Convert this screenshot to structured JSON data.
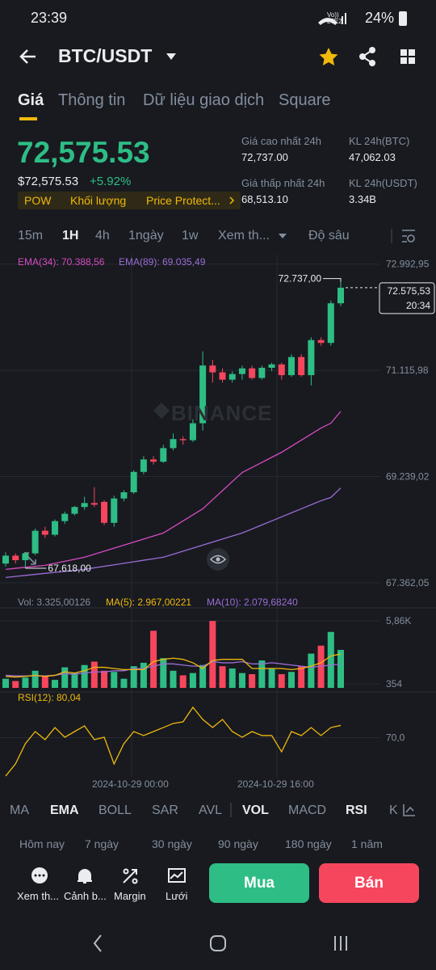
{
  "status_bar": {
    "time": "23:39",
    "network": "Vo)) LTE2",
    "battery": "24%"
  },
  "header": {
    "pair": "BTC/USDT"
  },
  "tabs": [
    "Giá",
    "Thông tin",
    "Dữ liệu giao dịch",
    "Square"
  ],
  "price": {
    "last": "72,575.53",
    "usd": "$72,575.53",
    "change": "+5.92%",
    "tags": [
      "POW",
      "Khối lượng",
      "Price Protect..."
    ]
  },
  "stats": [
    {
      "label": "Giá cao nhất 24h",
      "value": "72,737.00"
    },
    {
      "label": "KL 24h(BTC)",
      "value": "47,062.03"
    },
    {
      "label": "Giá thấp nhất 24h",
      "value": "68,513.10"
    },
    {
      "label": "KL 24h(USDT)",
      "value": "3.34B"
    }
  ],
  "intervals": [
    "15m",
    "1H",
    "4h",
    "1ngày",
    "1w",
    "Xem th...",
    "Độ sâu"
  ],
  "chart": {
    "type": "candlestick",
    "ema_legend": [
      "EMA(34): 70.388,56",
      "EMA(89): 69.035,49"
    ],
    "ylim": [
      67160,
      73160
    ],
    "yticks": [
      {
        "value": 72992.95,
        "label": "72.992,95"
      },
      {
        "value": 71115.98,
        "label": "71.115,98"
      },
      {
        "value": 69239.02,
        "label": "69.239,02"
      },
      {
        "value": 67362.05,
        "label": "67.362,05"
      }
    ],
    "open": [
      67700,
      67840,
      67760,
      67880,
      68280,
      68210,
      68450,
      68580,
      68700,
      68770,
      68790,
      68420,
      68850,
      68960,
      69320,
      69540,
      69500,
      69740,
      69900,
      69880,
      70180,
      71200,
      71080,
      70950,
      71050,
      71150,
      70980,
      71160,
      71220,
      71030,
      71350,
      71030,
      71650,
      71600,
      72300
    ],
    "high": [
      67900,
      67880,
      67900,
      68320,
      68350,
      68480,
      68620,
      68720,
      68880,
      69050,
      68820,
      68900,
      69000,
      69350,
      69600,
      69600,
      69800,
      70000,
      69950,
      70250,
      71450,
      71300,
      71150,
      71100,
      71200,
      71200,
      71200,
      71250,
      71250,
      71400,
      71400,
      71700,
      71700,
      72350,
      72737
    ],
    "low": [
      67650,
      67700,
      67618,
      67850,
      68150,
      68180,
      68400,
      68550,
      68650,
      68700,
      68380,
      68350,
      68800,
      68930,
      69280,
      69450,
      69480,
      69700,
      69800,
      69850,
      70050,
      70900,
      70900,
      70900,
      70950,
      70950,
      70950,
      71100,
      70950,
      71000,
      71000,
      70850,
      71550,
      71550,
      72250
    ],
    "close": [
      67840,
      67760,
      67880,
      68280,
      68210,
      68450,
      68580,
      68700,
      68770,
      68740,
      68420,
      68850,
      68960,
      69320,
      69540,
      69500,
      69740,
      69900,
      69880,
      70180,
      71200,
      71080,
      70950,
      71050,
      71150,
      70980,
      71160,
      71220,
      71030,
      71350,
      71030,
      71650,
      71600,
      72300,
      72575.53
    ],
    "ema34": [
      67598,
      67616,
      67634,
      67651,
      67669,
      67705,
      67741,
      67776,
      67812,
      67866,
      67919,
      67973,
      68026,
      68080,
      68133,
      68187,
      68240,
      68347,
      68454,
      68561,
      68668,
      68829,
      68989,
      69150,
      69310,
      69399,
      69488,
      69578,
      69667,
      69774,
      69881,
      69988,
      70095,
      70181,
      70388.56
    ],
    "ema89": [
      67455,
      67473,
      67491,
      67509,
      67527,
      67544,
      67562,
      67580,
      67598,
      67625,
      67652,
      67678,
      67705,
      67732,
      67759,
      67785,
      67812,
      67866,
      67919,
      67973,
      68026,
      68080,
      68133,
      68187,
      68240,
      68311,
      68383,
      68454,
      68525,
      68597,
      68668,
      68740,
      68811,
      68869,
      69035.49
    ],
    "high_label": {
      "value": 72737,
      "label": "72.737,00"
    },
    "low_label": {
      "value": 67618,
      "label": "67.618,00"
    },
    "last": {
      "value": 72575.53,
      "label": "72.575,53",
      "countdown": "20:34"
    },
    "watermark": "BINANCE"
  },
  "volume": {
    "legend": [
      "Vol: 3.325,00126",
      "MA(5): 2.967,00221",
      "MA(10): 2.079,68240"
    ],
    "ylim": [
      0,
      6440
    ],
    "yticks": [
      {
        "value": 5860,
        "label": "5,86K"
      },
      354
    ],
    "values": [
      800,
      600,
      900,
      1500,
      1100,
      700,
      1800,
      1300,
      2000,
      2300,
      1500,
      1400,
      800,
      1900,
      2200,
      5000,
      2600,
      1500,
      1100,
      1300,
      2000,
      5860,
      1900,
      1700,
      1300,
      1200,
      2400,
      1700,
      1200,
      1400,
      1900,
      3000,
      3700,
      4900,
      3325.00126
    ],
    "ma5": [
      1000,
      950,
      1000,
      1100,
      1000,
      1100,
      1400,
      1300,
      1500,
      1800,
      1800,
      1700,
      1600,
      1600,
      1600,
      2300,
      2500,
      2600,
      2500,
      2200,
      1700,
      2400,
      2500,
      2500,
      2500,
      1700,
      1700,
      1700,
      1700,
      1600,
      1700,
      1900,
      2200,
      2800,
      2967.00221
    ],
    "ma10": [
      1100,
      1050,
      1050,
      1050,
      1050,
      1100,
      1250,
      1200,
      1300,
      1400,
      1400,
      1500,
      1500,
      1700,
      1700,
      1900,
      2100,
      2100,
      2000,
      1900,
      1900,
      2300,
      2200,
      2200,
      2300,
      2100,
      2100,
      2200,
      2100,
      2000,
      1900,
      1800,
      1900,
      2000,
      2079.6824
    ]
  },
  "rsi": {
    "legend": "RSI(12): 80,04",
    "ylim": [
      35,
      105
    ],
    "yticks": [
      {
        "value": 70,
        "label": "70,0"
      }
    ],
    "values": [
      38.3,
      48.3,
      65,
      75,
      68.3,
      78.3,
      70.3,
      75,
      79.7,
      68.3,
      70.3,
      48.3,
      65,
      75,
      71.7,
      75,
      78.3,
      81.7,
      83,
      95,
      85,
      78.3,
      85,
      75,
      70.3,
      75,
      71.7,
      71.7,
      58.3,
      75,
      71.7,
      78.3,
      71.7,
      78.3,
      80.04
    ]
  },
  "time_labels": [
    "2024-10-29 00:00",
    "2024-10-29 16:00"
  ],
  "indicators": [
    "MA",
    "EMA",
    "BOLL",
    "SAR",
    "AVL",
    "VOL",
    "MACD",
    "RSI",
    "K"
  ],
  "periods": [
    "Hôm nay",
    "7 ngày",
    "30 ngày",
    "90 ngày",
    "180 ngày",
    "1 năm"
  ],
  "actions": [
    "Xem th...",
    "Cảnh b...",
    "Margin",
    "Lưới"
  ],
  "buttons": {
    "buy": "Mua",
    "sell": "Bán"
  }
}
